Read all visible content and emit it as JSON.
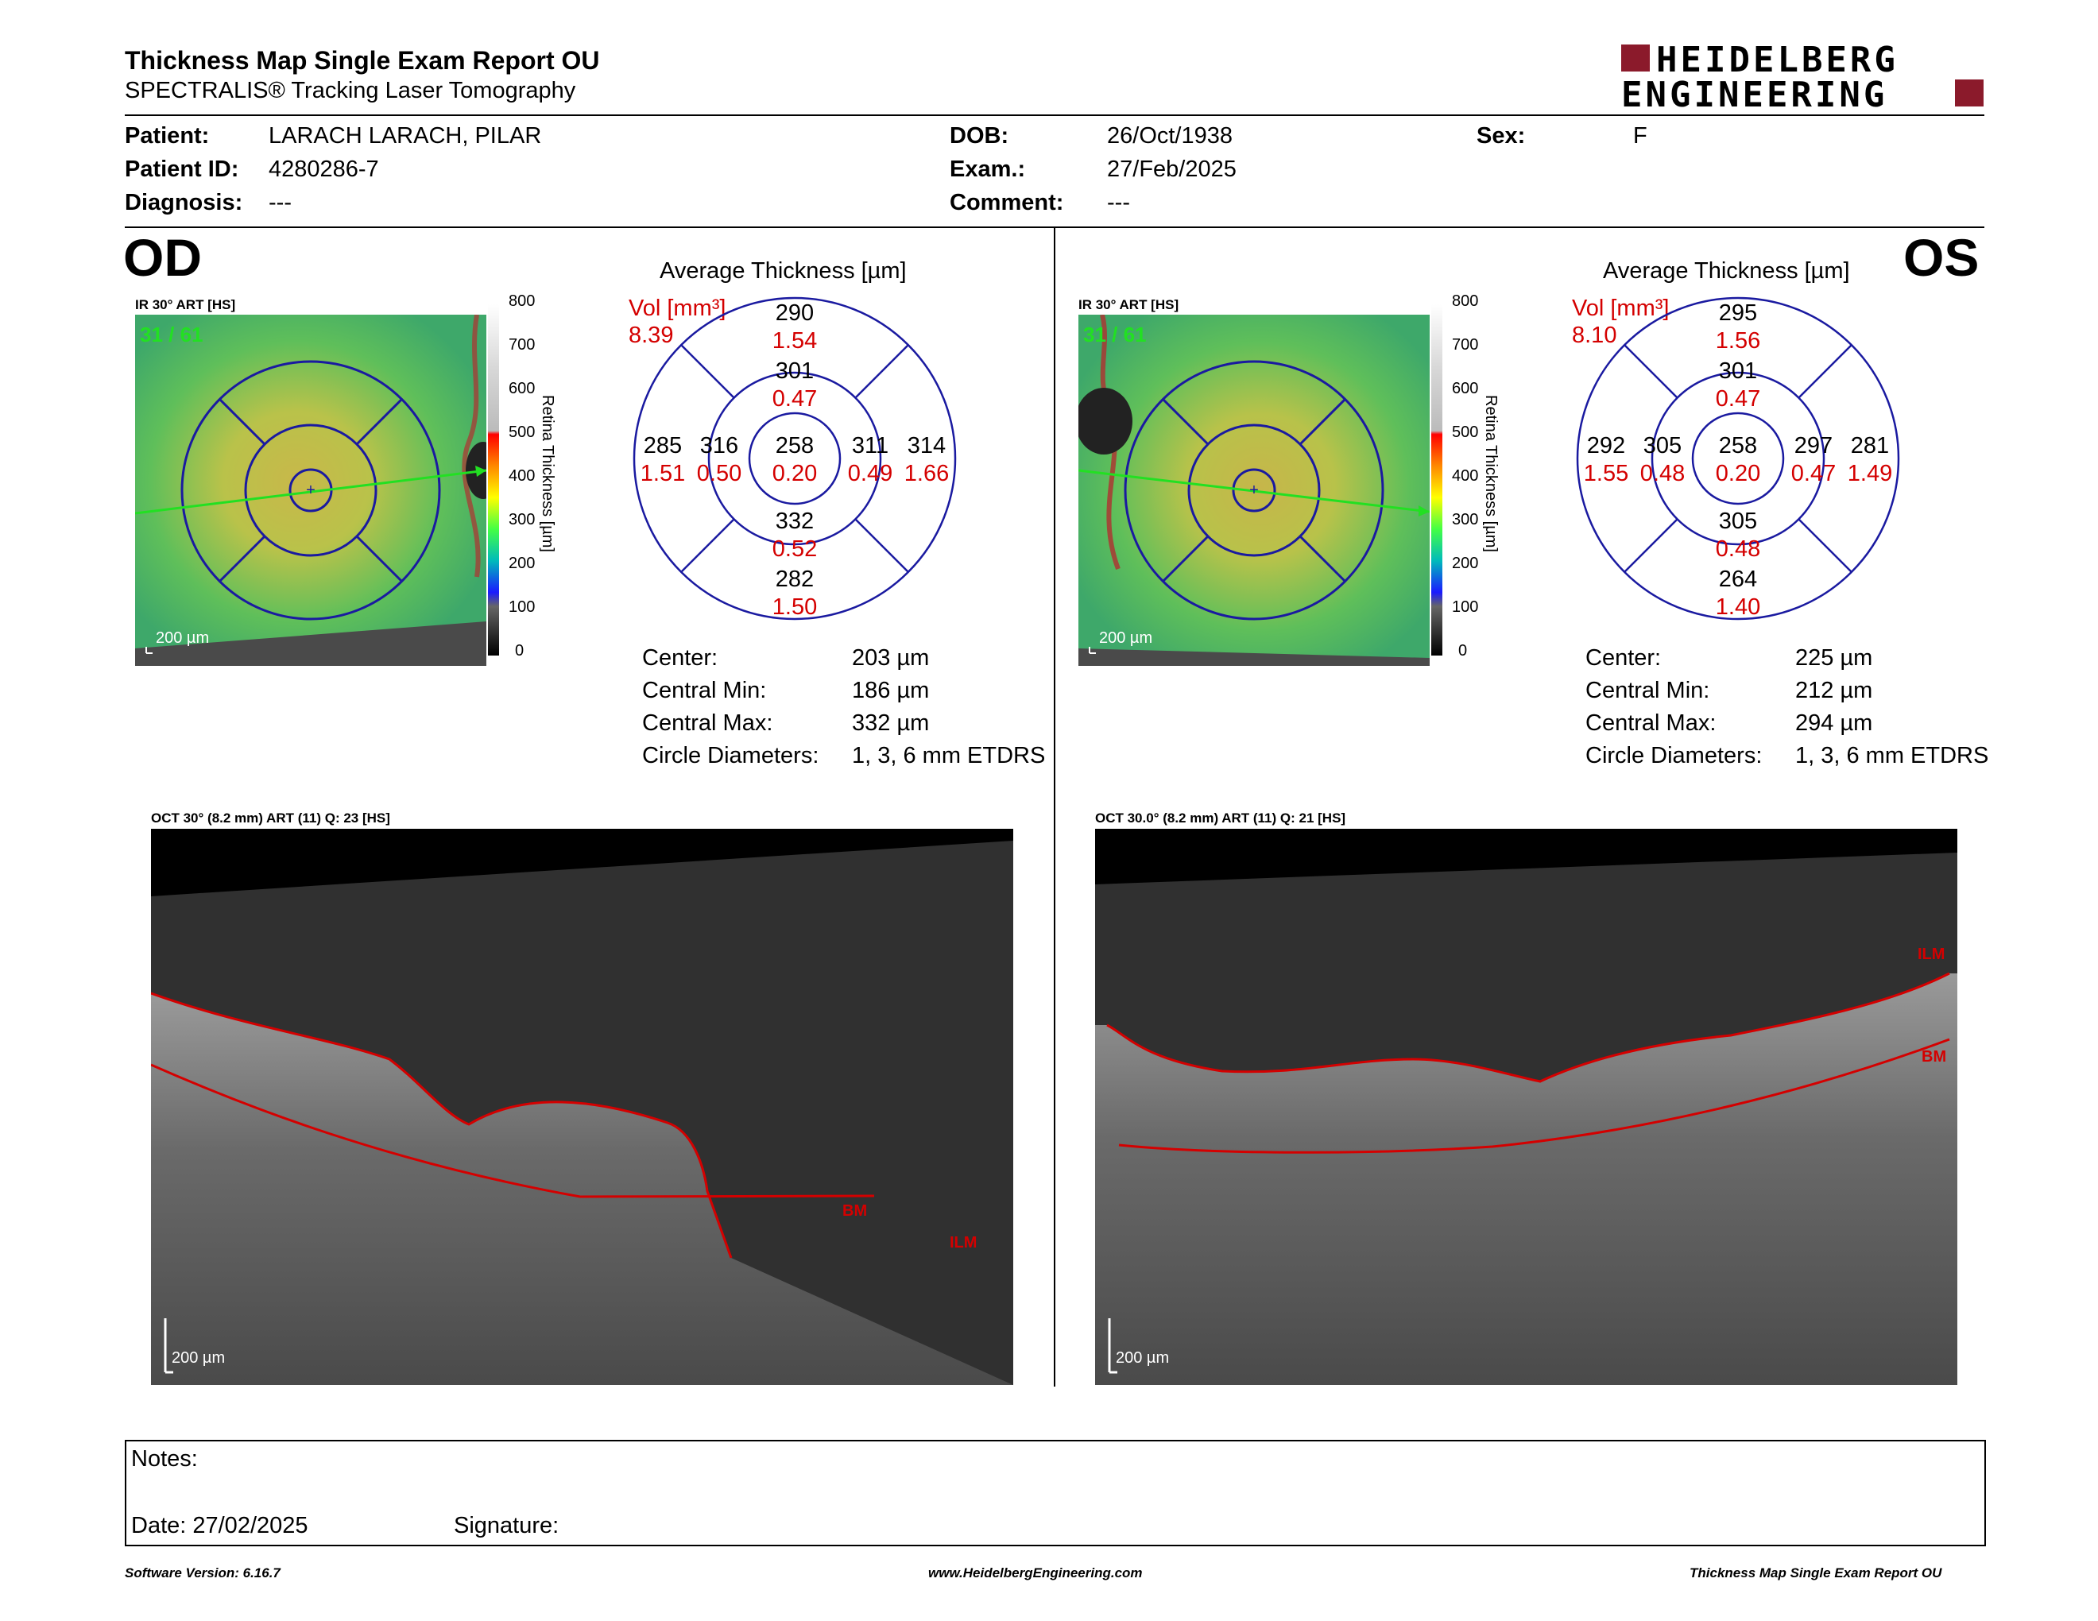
{
  "header": {
    "title": "Thickness Map Single Exam Report OU",
    "subtitle": "SPECTRALIS® Tracking Laser Tomography",
    "logo_line1": "HEIDELBERG",
    "logo_line2": "ENGINEERING"
  },
  "patient": {
    "patient_label": "Patient:",
    "patient_value": "LARACH LARACH, PILAR",
    "id_label": "Patient ID:",
    "id_value": "4280286-7",
    "diagnosis_label": "Diagnosis:",
    "diagnosis_value": "---",
    "dob_label": "DOB:",
    "dob_value": "26/Oct/1938",
    "exam_label": "Exam.:",
    "exam_value": "27/Feb/2025",
    "comment_label": "Comment:",
    "comment_value": "---",
    "sex_label": "Sex:",
    "sex_value": "F"
  },
  "od": {
    "eye_label": "OD",
    "ir_label": "IR 30° ART [HS]",
    "scan_index": "31 / 61",
    "scale_bar": "200 µm",
    "avg_title": "Average Thickness [µm]",
    "vol_label": "Vol [mm³]",
    "vol_value": "8.39",
    "sectors": {
      "outer_top": "290",
      "outer_top_vol": "1.54",
      "inner_top": "301",
      "inner_top_vol": "0.47",
      "outer_left": "285",
      "outer_left_vol": "1.51",
      "inner_left": "316",
      "inner_left_vol": "0.50",
      "center": "258",
      "center_vol": "0.20",
      "inner_right": "311",
      "inner_right_vol": "0.49",
      "outer_right": "314",
      "outer_right_vol": "1.66",
      "inner_bottom": "332",
      "inner_bottom_vol": "0.52",
      "outer_bottom": "282",
      "outer_bottom_vol": "1.50"
    },
    "stats": {
      "center_label": "Center:",
      "center_value": "203 µm",
      "min_label": "Central Min:",
      "min_value": "186 µm",
      "max_label": "Central Max:",
      "max_value": "332 µm",
      "diam_label": "Circle Diameters:",
      "diam_value": "1, 3, 6 mm ETDRS"
    },
    "oct_label": "OCT 30° (8.2 mm) ART (11) Q: 23 [HS]",
    "oct_scale": "200 µm",
    "bm_label": "BM",
    "ilm_label": "ILM"
  },
  "os": {
    "eye_label": "OS",
    "ir_label": "IR 30° ART [HS]",
    "scan_index": "31 / 61",
    "scale_bar": "200 µm",
    "avg_title": "Average Thickness [µm]",
    "vol_label": "Vol [mm³]",
    "vol_value": "8.10",
    "sectors": {
      "outer_top": "295",
      "outer_top_vol": "1.56",
      "inner_top": "301",
      "inner_top_vol": "0.47",
      "outer_left": "292",
      "outer_left_vol": "1.55",
      "inner_left": "305",
      "inner_left_vol": "0.48",
      "center": "258",
      "center_vol": "0.20",
      "inner_right": "297",
      "inner_right_vol": "0.47",
      "outer_right": "281",
      "outer_right_vol": "1.49",
      "inner_bottom": "305",
      "inner_bottom_vol": "0.48",
      "outer_bottom": "264",
      "outer_bottom_vol": "1.40"
    },
    "stats": {
      "center_label": "Center:",
      "center_value": "225 µm",
      "min_label": "Central Min:",
      "min_value": "212 µm",
      "max_label": "Central Max:",
      "max_value": "294 µm",
      "diam_label": "Circle Diameters:",
      "diam_value": "1, 3, 6 mm ETDRS"
    },
    "oct_label": "OCT 30.0° (8.2 mm) ART (11) Q: 21 [HS]",
    "oct_scale": "200 µm",
    "bm_label": "BM",
    "ilm_label": "ILM"
  },
  "colorbar": {
    "ticks": [
      "800",
      "700",
      "600",
      "500",
      "400",
      "300",
      "200",
      "100",
      "0"
    ],
    "axis_label": "Retina Thickness [µm]"
  },
  "notes": {
    "notes_label": "Notes:",
    "date_label": "Date: 27/02/2025",
    "signature_label": "Signature:"
  },
  "footer": {
    "software": "Software Version: 6.16.7",
    "website": "www.HeidelbergEngineering.com",
    "report": "Thickness Map Single Exam Report OU"
  },
  "colors": {
    "accent_red": "#d40000",
    "logo_red": "#8b1a2b",
    "grid_blue": "#1a1aa0"
  }
}
